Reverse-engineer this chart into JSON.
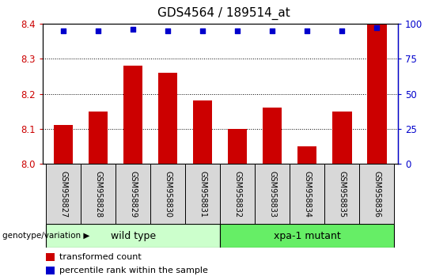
{
  "title": "GDS4564 / 189514_at",
  "samples": [
    "GSM958827",
    "GSM958828",
    "GSM958829",
    "GSM958830",
    "GSM958831",
    "GSM958832",
    "GSM958833",
    "GSM958834",
    "GSM958835",
    "GSM958836"
  ],
  "transformed_count": [
    8.11,
    8.15,
    8.28,
    8.26,
    8.18,
    8.1,
    8.16,
    8.05,
    8.15,
    8.4
  ],
  "percentile_rank": [
    95,
    95,
    96,
    95,
    95,
    95,
    95,
    95,
    95,
    97
  ],
  "ylim_left": [
    8.0,
    8.4
  ],
  "ylim_right": [
    0,
    100
  ],
  "yticks_left": [
    8.0,
    8.1,
    8.2,
    8.3,
    8.4
  ],
  "yticks_right": [
    0,
    25,
    50,
    75,
    100
  ],
  "bar_color": "#cc0000",
  "dot_color": "#0000cc",
  "wild_type_indices": [
    0,
    1,
    2,
    3,
    4
  ],
  "mutant_indices": [
    5,
    6,
    7,
    8,
    9
  ],
  "wild_type_label": "wild type",
  "mutant_label": "xpa-1 mutant",
  "wild_type_color": "#ccffcc",
  "mutant_color": "#66ee66",
  "label_box_color": "#d8d8d8",
  "genotype_label": "genotype/variation",
  "legend_bar_label": "transformed count",
  "legend_dot_label": "percentile rank within the sample",
  "grid_color": "black",
  "title_fontsize": 11,
  "axis_label_color_left": "#cc0000",
  "axis_label_color_right": "#0000cc",
  "bar_width": 0.55,
  "background_color": "#ffffff"
}
